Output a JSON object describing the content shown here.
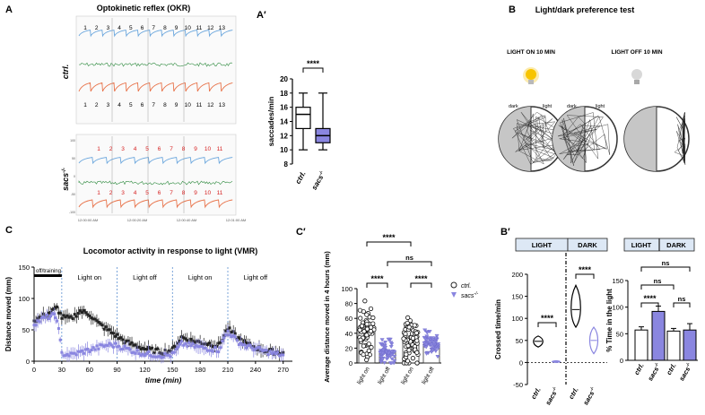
{
  "panels": {
    "A": {
      "letter": "A",
      "title": "Optokinetic reflex (OKR)",
      "ctrl_label": "ctrl.",
      "sacs_label": "sacs",
      "sacs_sup": "-/-",
      "ctrl_numbers": [
        "1",
        "2",
        "3",
        "4",
        "5",
        "6",
        "7",
        "8",
        "9",
        "10",
        "11",
        "12",
        "13"
      ],
      "sacs_numbers": [
        "1",
        "2",
        "3",
        "4",
        "5",
        "6",
        "7",
        "8",
        "9",
        "10",
        "11"
      ],
      "time_ticks": [
        "12:00:00 AM",
        "12:00:20 AM",
        "12:00:40 AM",
        "12:01:00 AM"
      ],
      "y_ticks": [
        "100",
        "50",
        "0",
        "-50",
        "-100"
      ]
    },
    "A2": {
      "letter": "A′"
    },
    "B": {
      "letter": "B",
      "title": "Light/dark preference test",
      "light_on": "LIGHT ON 10 MIN",
      "light_off": "LIGHT OFF 10 MIN",
      "dark": "dark",
      "light": "light"
    },
    "B2": {
      "letter": "B′",
      "light_header": "LIGHT",
      "dark_header": "DARK"
    },
    "C": {
      "letter": "C",
      "title": "Locomotor activity in response to light (VMR)",
      "off_training": "off/training",
      "phase_labels": [
        "Light on",
        "Light off",
        "Light on",
        "Light off"
      ]
    },
    "C2": {
      "letter": "C′",
      "legend_ctrl": "ctrl.",
      "legend_sacs": "sacs",
      "legend_sup": "-/-"
    }
  },
  "colors": {
    "ctrl": "#222222",
    "sacs": "#8a86e0",
    "okr_blue": "#6aa6dd",
    "okr_green": "#2d8a3e",
    "okr_red": "#e8734a",
    "sig_red": "#d62020"
  },
  "chart_data": [
    {
      "id": "A2",
      "type": "box",
      "ylabel": "saccades/min",
      "ylim": [
        8,
        20
      ],
      "yticks": [
        8,
        10,
        12,
        14,
        16,
        18,
        20
      ],
      "categories": [
        "ctrl.",
        "sacs-/-"
      ],
      "series": [
        {
          "name": "ctrl.",
          "min": 10,
          "q1": 13,
          "median": 15,
          "q3": 16,
          "max": 18
        },
        {
          "name": "sacs-/-",
          "min": 10,
          "q1": 11,
          "median": 12,
          "q3": 13,
          "max": 18
        }
      ],
      "significance": [
        {
          "from": 0,
          "to": 1,
          "label": "****"
        }
      ]
    },
    {
      "id": "C",
      "type": "line",
      "xlabel": "time (min)",
      "ylabel": "Distance moved (mm)",
      "xlim": [
        0,
        280
      ],
      "ylim": [
        0,
        150
      ],
      "xticks": [
        0,
        30,
        60,
        90,
        120,
        150,
        180,
        210,
        240,
        270
      ],
      "yticks": [
        0,
        50,
        100,
        150
      ],
      "dividers": [
        30,
        90,
        150,
        210
      ],
      "training_bar": [
        0,
        30
      ],
      "series": [
        {
          "name": "ctrl.",
          "x": [
            0,
            10,
            20,
            25,
            30,
            40,
            50,
            60,
            70,
            80,
            90,
            100,
            110,
            120,
            130,
            140,
            150,
            160,
            170,
            180,
            190,
            200,
            210,
            220,
            230,
            240,
            250,
            260,
            270
          ],
          "y": [
            65,
            72,
            80,
            85,
            70,
            68,
            80,
            75,
            60,
            50,
            40,
            30,
            25,
            20,
            17,
            15,
            18,
            38,
            33,
            30,
            28,
            25,
            52,
            38,
            28,
            22,
            17,
            15,
            14
          ]
        },
        {
          "name": "sacs-/-",
          "x": [
            0,
            10,
            20,
            25,
            30,
            40,
            50,
            60,
            70,
            80,
            90,
            100,
            110,
            120,
            130,
            140,
            150,
            160,
            170,
            180,
            190,
            200,
            210,
            220,
            230,
            240,
            250,
            260,
            270
          ],
          "y": [
            60,
            68,
            73,
            68,
            12,
            10,
            14,
            18,
            22,
            26,
            25,
            20,
            15,
            12,
            10,
            9,
            10,
            28,
            25,
            22,
            20,
            18,
            48,
            32,
            24,
            20,
            16,
            12,
            10
          ]
        }
      ]
    },
    {
      "id": "C2",
      "type": "scatter-bar",
      "ylabel": "Average distance moved in 4 hours (mm)",
      "ylim": [
        0,
        100
      ],
      "yticks": [
        0,
        20,
        40,
        60,
        80,
        100
      ],
      "categories": [
        "light on",
        "light off",
        "light on",
        "light off"
      ],
      "series": [
        {
          "name": "ctrl.",
          "positions": [
            0,
            2
          ],
          "means": [
            45,
            30
          ]
        },
        {
          "name": "sacs-/-",
          "positions": [
            1,
            3
          ],
          "means": [
            15,
            25
          ]
        }
      ],
      "significance": [
        {
          "from": 0,
          "to": 2,
          "label": "****",
          "level": 3
        },
        {
          "from": 1,
          "to": 3,
          "label": "ns",
          "level": 2
        },
        {
          "from": 0,
          "to": 1,
          "label": "****",
          "level": 1
        },
        {
          "from": 2,
          "to": 3,
          "label": "****",
          "level": 1
        }
      ]
    },
    {
      "id": "B2a",
      "type": "violin",
      "ylabel": "Crossed time/min",
      "ylim": [
        -50,
        200
      ],
      "yticks": [
        -50,
        0,
        50,
        100,
        150,
        200
      ],
      "categories": [
        "ctrl.",
        "sacs-/-",
        "ctrl.",
        "sacs-/-"
      ],
      "series": [
        {
          "name": "ctrl.",
          "positions": [
            0,
            2
          ],
          "medians": [
            48,
            120
          ],
          "ranges": [
            [
              35,
              60
            ],
            [
              80,
              175
            ]
          ]
        },
        {
          "name": "sacs-/-",
          "positions": [
            1,
            3
          ],
          "medians": [
            2,
            50
          ],
          "ranges": [
            [
              0,
              4
            ],
            [
              20,
              80
            ]
          ]
        }
      ],
      "significance": [
        {
          "from": 0,
          "to": 1,
          "label": "****"
        },
        {
          "from": 2,
          "to": 3,
          "label": "****"
        }
      ]
    },
    {
      "id": "B2b",
      "type": "bar",
      "ylabel": "% Time in the light",
      "ylim": [
        0,
        150
      ],
      "yticks": [
        0,
        50,
        100,
        150
      ],
      "categories": [
        "ctrl.",
        "sacs-/-",
        "ctrl.",
        "sacs-/-"
      ],
      "series": [
        {
          "name": "ctrl.",
          "positions": [
            0,
            2
          ],
          "values": [
            57,
            55
          ],
          "errors": [
            6,
            5
          ]
        },
        {
          "name": "sacs-/-",
          "positions": [
            1,
            3
          ],
          "values": [
            92,
            57
          ],
          "errors": [
            10,
            12
          ]
        }
      ],
      "significance": [
        {
          "from": 0,
          "to": 3,
          "label": "ns",
          "level": 3
        },
        {
          "from": 0,
          "to": 2,
          "label": "ns",
          "level": 2
        },
        {
          "from": 0,
          "to": 1,
          "label": "****",
          "level": 1
        },
        {
          "from": 2,
          "to": 3,
          "label": "ns",
          "level": 1
        }
      ]
    }
  ]
}
